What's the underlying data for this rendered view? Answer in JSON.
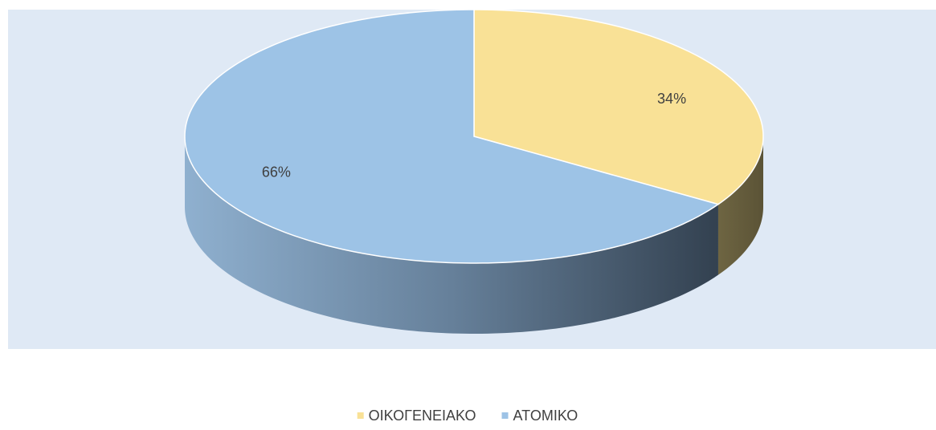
{
  "chart_data": {
    "type": "pie",
    "categories": [
      "ΟΙΚΟΓΕΝΕΙΑΚΟ",
      "ΑΤΟΜΙΚΟ"
    ],
    "values": [
      34,
      66
    ],
    "value_labels": [
      "34%",
      "66%"
    ],
    "colors": [
      "#f9e196",
      "#9dc3e6"
    ],
    "legend": "bottom"
  }
}
